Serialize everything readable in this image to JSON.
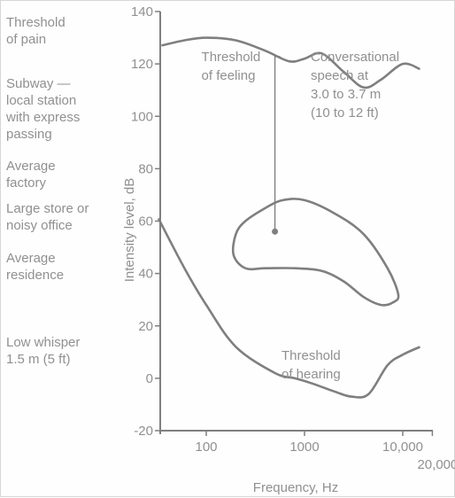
{
  "chart_data": {
    "type": "line",
    "xlabel": "Frequency, Hz",
    "ylabel": "Intensity level, dB",
    "x_scale": "log",
    "xlim": [
      32,
      20000
    ],
    "ylim": [
      -20,
      140
    ],
    "x_ticks": [
      {
        "value": 100,
        "label": "100"
      },
      {
        "value": 1000,
        "label": "1000"
      },
      {
        "value": 10000,
        "label": "10,000"
      },
      {
        "value": 20000,
        "label": "20,000"
      }
    ],
    "y_ticks": [
      -20,
      0,
      20,
      40,
      60,
      80,
      100,
      120,
      140
    ],
    "grid": false,
    "series": [
      {
        "name": "Threshold of feeling",
        "x": [
          35,
          60,
          100,
          200,
          400,
          700,
          1000,
          1500,
          2500,
          4000,
          6000,
          10000,
          15000
        ],
        "y": [
          127,
          129,
          130,
          129,
          125,
          121,
          122,
          124,
          117,
          111,
          114,
          120,
          118
        ]
      },
      {
        "name": "Threshold of hearing",
        "x": [
          32,
          60,
          100,
          200,
          500,
          800,
          1200,
          2000,
          3000,
          4500,
          7000,
          10000,
          15000
        ],
        "y": [
          61,
          42,
          28,
          12,
          2,
          0,
          -2,
          -5,
          -7,
          -6,
          5,
          9,
          12
        ]
      },
      {
        "name": "Conversational speech",
        "closed": true,
        "x": [
          200,
          250,
          400,
          600,
          1000,
          2000,
          4000,
          7000,
          9000,
          8000,
          6000,
          4000,
          2500,
          1500,
          800,
          400,
          250,
          190
        ],
        "y": [
          55,
          60,
          65,
          68,
          68,
          63,
          55,
          42,
          32,
          29,
          28,
          31,
          37,
          41,
          42,
          42,
          42,
          47
        ]
      }
    ],
    "annotations": [
      {
        "text": "Threshold\nof feeling",
        "x": 150,
        "y": 121
      },
      {
        "text": "Threshold\nof hearing",
        "x": 2200,
        "y": 7
      },
      {
        "text": "Conversational\nspeech at\n3.0 to 3.7 m\n(10 to 12 ft)",
        "x": 1000,
        "y": 90,
        "point": [
          500,
          56
        ]
      }
    ],
    "side_labels": [
      {
        "text": "Threshold\nof pain",
        "y": 134
      },
      {
        "text": "Subway —\nlocal station\nwith express\npassing",
        "y": 100
      },
      {
        "text": "Average\nfactory",
        "y": 78
      },
      {
        "text": "Large store or\nnoisy office",
        "y": 62
      },
      {
        "text": "Average\nresidence",
        "y": 42
      },
      {
        "text": "Low whisper\n1.5 m (5 ft)",
        "y": 10
      }
    ]
  },
  "colors": {
    "line": "#7f7f7f",
    "text": "#909090"
  }
}
